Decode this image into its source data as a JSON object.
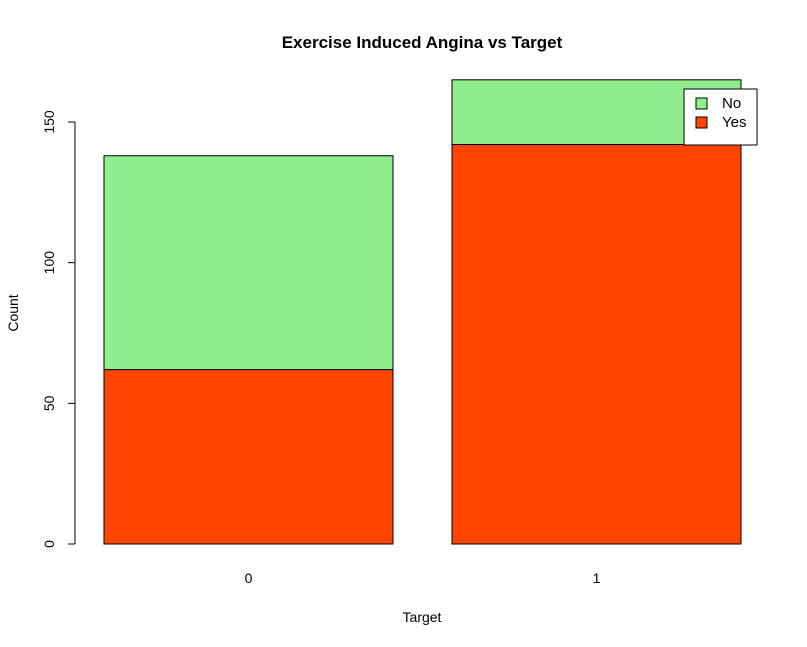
{
  "chart_data": {
    "type": "bar",
    "stacked": true,
    "title": "Exercise Induced Angina vs Target",
    "xlabel": "Target",
    "ylabel": "Count",
    "categories": [
      "0",
      "1"
    ],
    "series": [
      {
        "name": "Yes",
        "values": [
          62,
          142
        ],
        "color": "#FF4500"
      },
      {
        "name": "No",
        "values": [
          76,
          23
        ],
        "color": "#90EE90"
      }
    ],
    "ylim": [
      0,
      165
    ],
    "yticks": [
      0,
      50,
      100,
      150
    ],
    "grid": false,
    "legend": {
      "position": "top-right",
      "entries": [
        "No",
        "Yes"
      ]
    }
  }
}
